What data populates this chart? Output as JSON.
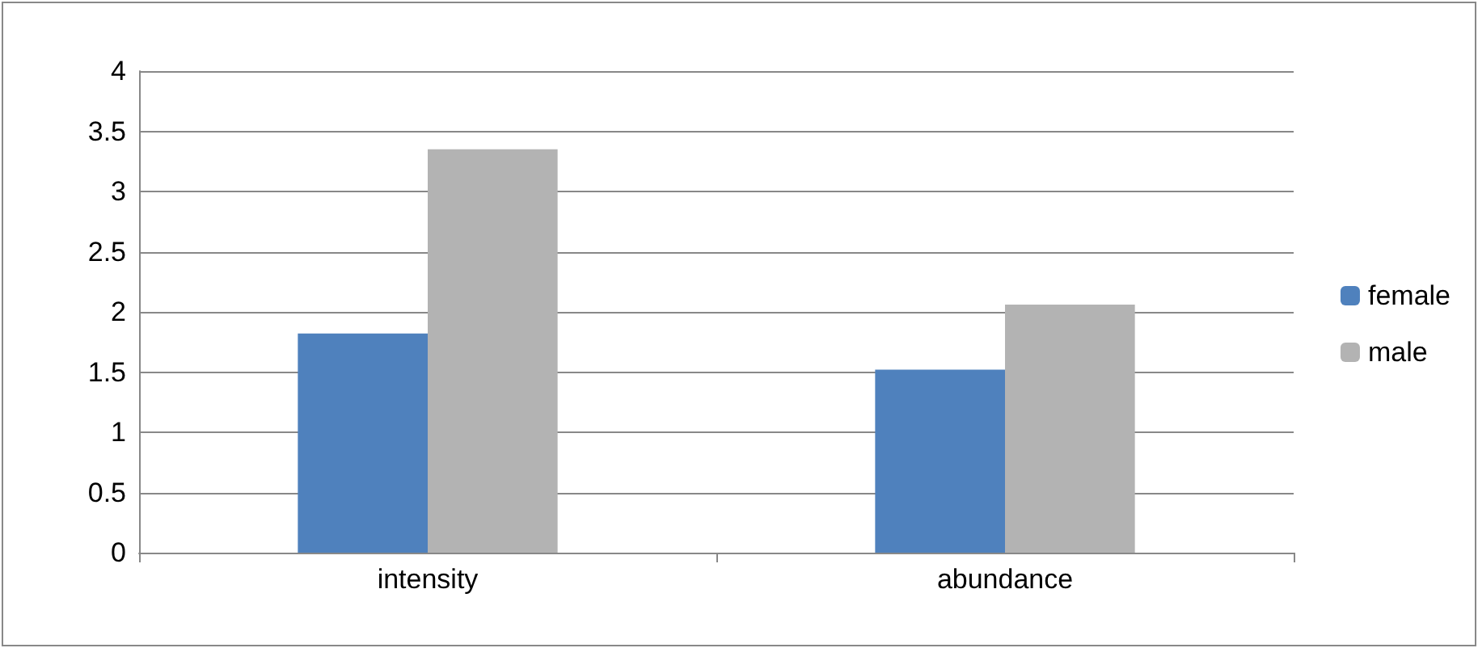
{
  "chart_data": {
    "type": "bar",
    "categories": [
      "intensity",
      "abundance"
    ],
    "series": [
      {
        "name": "female",
        "color": "#4f81bd",
        "values": [
          1.82,
          1.52
        ]
      },
      {
        "name": "male",
        "color": "#b3b3b3",
        "values": [
          3.35,
          2.06
        ]
      }
    ],
    "ylim": [
      0,
      4
    ],
    "yticks": [
      0,
      0.5,
      1,
      1.5,
      2,
      2.5,
      3,
      3.5,
      4
    ],
    "grid": "y",
    "legend": "right"
  }
}
